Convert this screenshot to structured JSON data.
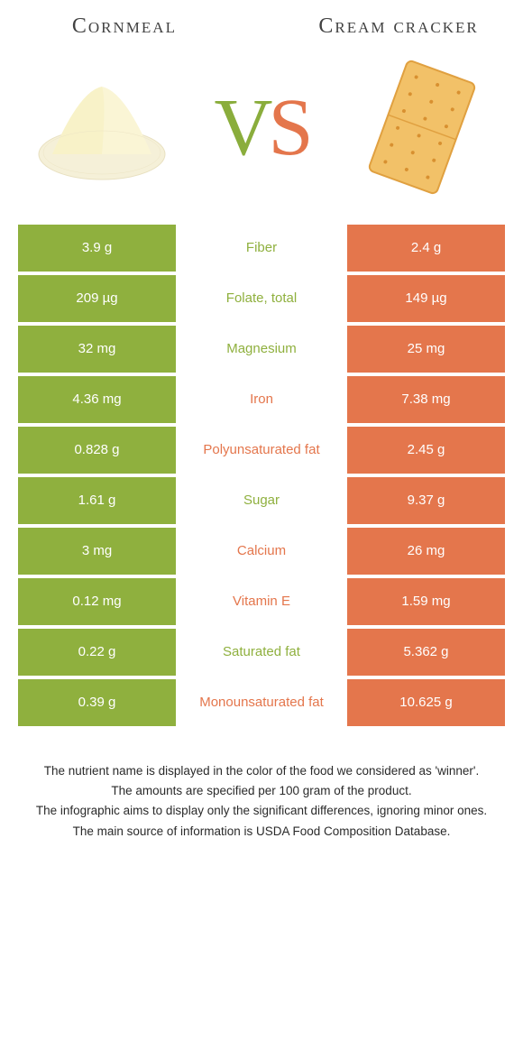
{
  "colors": {
    "green": "#8fb03e",
    "orange": "#e4764c",
    "text_green": "#8fb03e",
    "text_orange": "#e4764c",
    "title": "#414141"
  },
  "food_a": {
    "title": "Cornmeal"
  },
  "food_b": {
    "title": "Cream cracker"
  },
  "vs": {
    "v": "V",
    "s": "S"
  },
  "rows": [
    {
      "left": "3.9 g",
      "label": "Fiber",
      "right": "2.4 g",
      "winner": "a"
    },
    {
      "left": "209 µg",
      "label": "Folate, total",
      "right": "149 µg",
      "winner": "a"
    },
    {
      "left": "32 mg",
      "label": "Magnesium",
      "right": "25 mg",
      "winner": "a"
    },
    {
      "left": "4.36 mg",
      "label": "Iron",
      "right": "7.38 mg",
      "winner": "b"
    },
    {
      "left": "0.828 g",
      "label": "Polyunsaturated fat",
      "right": "2.45 g",
      "winner": "b"
    },
    {
      "left": "1.61 g",
      "label": "Sugar",
      "right": "9.37 g",
      "winner": "a"
    },
    {
      "left": "3 mg",
      "label": "Calcium",
      "right": "26 mg",
      "winner": "b"
    },
    {
      "left": "0.12 mg",
      "label": "Vitamin E",
      "right": "1.59 mg",
      "winner": "b"
    },
    {
      "left": "0.22 g",
      "label": "Saturated fat",
      "right": "5.362 g",
      "winner": "a"
    },
    {
      "left": "0.39 g",
      "label": "Monounsaturated fat",
      "right": "10.625 g",
      "winner": "b"
    }
  ],
  "footnotes": [
    "The nutrient name is displayed in the color of the food we considered as 'winner'.",
    "The amounts are specified per 100 gram of the product.",
    "The infographic aims to display only the significant differences, ignoring minor ones.",
    "The main source of information is USDA Food Composition Database."
  ]
}
